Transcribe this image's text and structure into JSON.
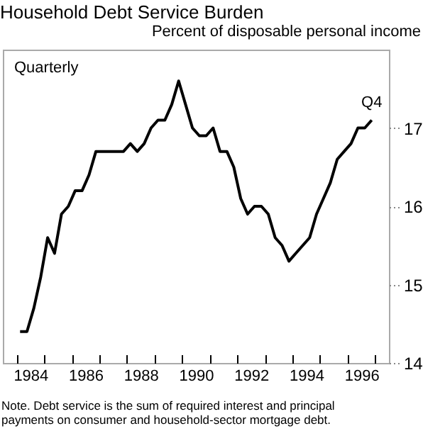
{
  "chart_data": {
    "type": "line",
    "title": "Household Debt Service Burden",
    "ylabel": "Percent of disposable personal income",
    "x": [
      1984.125,
      1984.375,
      1984.625,
      1984.875,
      1985.125,
      1985.375,
      1985.625,
      1985.875,
      1986.125,
      1986.375,
      1986.625,
      1986.875,
      1987.125,
      1987.375,
      1987.625,
      1987.875,
      1988.125,
      1988.375,
      1988.625,
      1988.875,
      1989.125,
      1989.375,
      1989.625,
      1989.875,
      1990.125,
      1990.375,
      1990.625,
      1990.875,
      1991.125,
      1991.375,
      1991.625,
      1991.875,
      1992.125,
      1992.375,
      1992.625,
      1992.875,
      1993.125,
      1993.375,
      1993.625,
      1993.875,
      1994.125,
      1994.375,
      1994.625,
      1994.875,
      1995.125,
      1995.375,
      1995.625,
      1995.875,
      1996.125,
      1996.375,
      1996.625,
      1996.875
    ],
    "values": [
      14.4,
      14.4,
      14.7,
      15.1,
      15.6,
      15.4,
      15.9,
      16.0,
      16.2,
      16.2,
      16.4,
      16.7,
      16.7,
      16.7,
      16.7,
      16.7,
      16.8,
      16.7,
      16.8,
      17.0,
      17.1,
      17.1,
      17.3,
      17.6,
      17.3,
      17.0,
      16.9,
      16.9,
      17.0,
      16.7,
      16.7,
      16.5,
      16.1,
      15.9,
      16.0,
      16.0,
      15.9,
      15.6,
      15.5,
      15.3,
      15.4,
      15.5,
      15.6,
      15.9,
      16.1,
      16.3,
      16.6,
      16.7,
      16.8,
      17.0,
      17.0,
      17.1
    ],
    "color": "#000000",
    "xlim": [
      1983.5,
      1997.5
    ],
    "xticks": [
      {
        "value": 1984,
        "label": null
      },
      {
        "value": 1984.5,
        "label": "1984"
      },
      {
        "value": 1985,
        "label": null
      },
      {
        "value": 1986,
        "label": null
      },
      {
        "value": 1986.5,
        "label": "1986"
      },
      {
        "value": 1987,
        "label": null
      },
      {
        "value": 1988,
        "label": null
      },
      {
        "value": 1988.5,
        "label": "1988"
      },
      {
        "value": 1989,
        "label": null
      },
      {
        "value": 1990,
        "label": null
      },
      {
        "value": 1990.5,
        "label": "1990"
      },
      {
        "value": 1991,
        "label": null
      },
      {
        "value": 1992,
        "label": null
      },
      {
        "value": 1992.5,
        "label": "1992"
      },
      {
        "value": 1993,
        "label": null
      },
      {
        "value": 1994,
        "label": null
      },
      {
        "value": 1994.5,
        "label": "1994"
      },
      {
        "value": 1995,
        "label": null
      },
      {
        "value": 1996,
        "label": null
      },
      {
        "value": 1996.5,
        "label": "1996"
      },
      {
        "value": 1997,
        "label": null
      }
    ],
    "ylim": [
      14,
      18
    ],
    "yticks": [
      14,
      15,
      16,
      17
    ],
    "annotations": [
      "Quarterly",
      {
        "text": "Q4",
        "x": 1996.875,
        "y": 17.1
      },
      "Note.  Debt service is the sum of required interest and principal payments on consumer and household-sector mortgage debt."
    ]
  }
}
